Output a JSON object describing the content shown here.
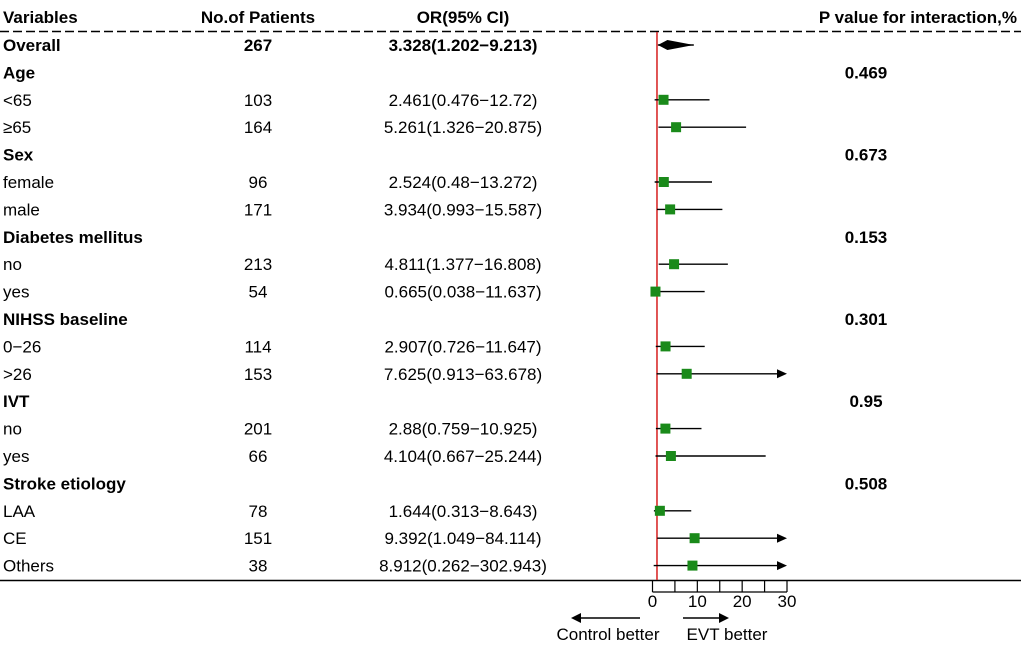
{
  "chart_data": {
    "type": "forest",
    "columns": {
      "variable": "Variables",
      "n": "No.of Patients",
      "or": "OR(95% CI)",
      "p": "P value for interaction,%"
    },
    "rows": [
      {
        "label": "Overall",
        "n": "267",
        "or_text": "3.328(1.202−9.213)",
        "or": 3.328,
        "lo": 1.202,
        "hi": 9.213,
        "bold": true,
        "marker": "diamond",
        "p": ""
      },
      {
        "label": "Age",
        "n": "",
        "or_text": "",
        "or": null,
        "lo": null,
        "hi": null,
        "bold": true,
        "marker": "",
        "p": "0.469"
      },
      {
        "label": "<65",
        "n": "103",
        "or_text": "2.461(0.476−12.72)",
        "or": 2.461,
        "lo": 0.476,
        "hi": 12.72,
        "bold": false,
        "marker": "square",
        "p": ""
      },
      {
        "label": "≥65",
        "n": "164",
        "or_text": "5.261(1.326−20.875)",
        "or": 5.261,
        "lo": 1.326,
        "hi": 20.875,
        "bold": false,
        "marker": "square",
        "p": ""
      },
      {
        "label": "Sex",
        "n": "",
        "or_text": "",
        "or": null,
        "lo": null,
        "hi": null,
        "bold": true,
        "marker": "",
        "p": "0.673"
      },
      {
        "label": "female",
        "n": "96",
        "or_text": "2.524(0.48−13.272)",
        "or": 2.524,
        "lo": 0.48,
        "hi": 13.272,
        "bold": false,
        "marker": "square",
        "p": ""
      },
      {
        "label": "male",
        "n": "171",
        "or_text": "3.934(0.993−15.587)",
        "or": 3.934,
        "lo": 0.993,
        "hi": 15.587,
        "bold": false,
        "marker": "square",
        "p": ""
      },
      {
        "label": "Diabetes mellitus",
        "n": "",
        "or_text": "",
        "or": null,
        "lo": null,
        "hi": null,
        "bold": true,
        "marker": "",
        "p": "0.153"
      },
      {
        "label": "no",
        "n": "213",
        "or_text": "4.811(1.377−16.808)",
        "or": 4.811,
        "lo": 1.377,
        "hi": 16.808,
        "bold": false,
        "marker": "square",
        "p": ""
      },
      {
        "label": "yes",
        "n": "54",
        "or_text": "0.665(0.038−11.637)",
        "or": 0.665,
        "lo": 0.038,
        "hi": 11.637,
        "bold": false,
        "marker": "square",
        "p": ""
      },
      {
        "label": "NIHSS baseline",
        "n": "",
        "or_text": "",
        "or": null,
        "lo": null,
        "hi": null,
        "bold": true,
        "marker": "",
        "p": "0.301"
      },
      {
        "label": "0−26",
        "n": "114",
        "or_text": "2.907(0.726−11.647)",
        "or": 2.907,
        "lo": 0.726,
        "hi": 11.647,
        "bold": false,
        "marker": "square",
        "p": ""
      },
      {
        "label": ">26",
        "n": "153",
        "or_text": "7.625(0.913−63.678)",
        "or": 7.625,
        "lo": 0.913,
        "hi": 63.678,
        "bold": false,
        "marker": "square",
        "p": ""
      },
      {
        "label": "IVT",
        "n": "",
        "or_text": "",
        "or": null,
        "lo": null,
        "hi": null,
        "bold": true,
        "marker": "",
        "p": "0.95"
      },
      {
        "label": "no",
        "n": "201",
        "or_text": "2.88(0.759−10.925)",
        "or": 2.88,
        "lo": 0.759,
        "hi": 10.925,
        "bold": false,
        "marker": "square",
        "p": ""
      },
      {
        "label": "yes",
        "n": "66",
        "or_text": "4.104(0.667−25.244)",
        "or": 4.104,
        "lo": 0.667,
        "hi": 25.244,
        "bold": false,
        "marker": "square",
        "p": ""
      },
      {
        "label": "Stroke etiology",
        "n": "",
        "or_text": "",
        "or": null,
        "lo": null,
        "hi": null,
        "bold": true,
        "marker": "",
        "p": "0.508"
      },
      {
        "label": "LAA",
        "n": "78",
        "or_text": "1.644(0.313−8.643)",
        "or": 1.644,
        "lo": 0.313,
        "hi": 8.643,
        "bold": false,
        "marker": "square",
        "p": ""
      },
      {
        "label": "CE",
        "n": "151",
        "or_text": "9.392(1.049−84.114)",
        "or": 9.392,
        "lo": 1.049,
        "hi": 84.114,
        "bold": false,
        "marker": "square",
        "p": ""
      },
      {
        "label": "Others",
        "n": "38",
        "or_text": "8.912(0.262−302.943)",
        "or": 8.912,
        "lo": 0.262,
        "hi": 302.943,
        "bold": false,
        "marker": "square",
        "p": ""
      }
    ],
    "x_axis": {
      "ticks": [
        0,
        10,
        20,
        30
      ],
      "labels": [
        "0",
        "10",
        "20",
        "30"
      ],
      "xlim": [
        0,
        30
      ],
      "reference_line": 1,
      "clip_arrows": true
    },
    "direction_labels": {
      "left": "Control better",
      "right": "EVT better"
    },
    "colors": {
      "marker": "#1a8a1a",
      "reference": "#d61e1e",
      "line": "#000000"
    }
  }
}
